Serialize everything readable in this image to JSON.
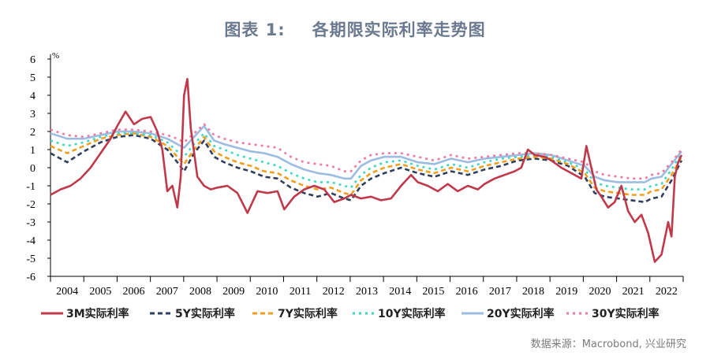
{
  "title": {
    "prefix": "图表 1:",
    "main": "各期限实际利率走势图"
  },
  "source": "数据来源：Macrobond, 兴业研究",
  "chart_data": {
    "type": "line",
    "yunit": "%",
    "ylim": [
      -6,
      6
    ],
    "yticks": [
      6,
      5,
      4,
      3,
      2,
      1,
      0,
      -1,
      -2,
      -3,
      -4,
      -5,
      -6
    ],
    "xlim": [
      2004,
      2022.95
    ],
    "xticks": [
      "2004",
      "2005",
      "2006",
      "2007",
      "2008",
      "2009",
      "2010",
      "2011",
      "2012",
      "2013",
      "2014",
      "2015",
      "2016",
      "2017",
      "2018",
      "2019",
      "2020",
      "2021",
      "2022"
    ],
    "grid": false,
    "legend_position": "bottom",
    "series": [
      {
        "name": "3M实际利率",
        "color": "#c0394b",
        "dash": "solid",
        "x": [
          2004.0,
          2004.3,
          2004.6,
          2004.9,
          2005.2,
          2005.5,
          2005.8,
          2006.0,
          2006.25,
          2006.5,
          2006.75,
          2007.0,
          2007.2,
          2007.35,
          2007.5,
          2007.65,
          2007.8,
          2007.9,
          2008.0,
          2008.1,
          2008.2,
          2008.4,
          2008.6,
          2008.8,
          2009.0,
          2009.3,
          2009.6,
          2009.9,
          2010.2,
          2010.5,
          2010.8,
          2011.0,
          2011.3,
          2011.6,
          2011.9,
          2012.2,
          2012.5,
          2012.8,
          2013.0,
          2013.3,
          2013.6,
          2013.9,
          2014.2,
          2014.5,
          2014.8,
          2015.0,
          2015.3,
          2015.6,
          2015.9,
          2016.2,
          2016.5,
          2016.8,
          2017.0,
          2017.3,
          2017.6,
          2017.9,
          2018.1,
          2018.3,
          2018.5,
          2018.8,
          2019.0,
          2019.3,
          2019.6,
          2019.9,
          2020.05,
          2020.2,
          2020.35,
          2020.5,
          2020.7,
          2020.9,
          2021.1,
          2021.3,
          2021.5,
          2021.7,
          2021.9,
          2022.1,
          2022.3,
          2022.5,
          2022.6,
          2022.7,
          2022.8,
          2022.9
        ],
        "y": [
          -1.5,
          -1.2,
          -1.0,
          -0.6,
          0.0,
          0.8,
          1.6,
          2.3,
          3.1,
          2.4,
          2.7,
          2.8,
          2.0,
          1.0,
          -1.3,
          -1.0,
          -2.2,
          -0.5,
          4.0,
          4.9,
          2.2,
          -0.5,
          -1.0,
          -1.2,
          -1.1,
          -1.0,
          -1.4,
          -2.5,
          -1.3,
          -1.4,
          -1.3,
          -2.3,
          -1.6,
          -1.2,
          -1.0,
          -1.2,
          -1.9,
          -1.7,
          -1.5,
          -1.7,
          -1.6,
          -1.8,
          -1.7,
          -1.0,
          -0.4,
          -0.8,
          -1.0,
          -1.3,
          -0.9,
          -1.3,
          -1.0,
          -1.2,
          -0.9,
          -0.6,
          -0.4,
          -0.2,
          0.0,
          1.0,
          0.7,
          0.6,
          0.4,
          0.0,
          -0.3,
          -0.6,
          1.2,
          0.0,
          -1.2,
          -1.6,
          -2.2,
          -1.9,
          -1.0,
          -2.4,
          -3.0,
          -2.6,
          -3.6,
          -5.2,
          -4.8,
          -3.0,
          -3.8,
          -0.5,
          0.3,
          0.7
        ]
      },
      {
        "name": "5Y实际利率",
        "color": "#2f3f5c",
        "dash": "6,4",
        "x": [
          2004.0,
          2004.5,
          2005.0,
          2005.5,
          2006.0,
          2006.5,
          2007.0,
          2007.5,
          2007.8,
          2008.0,
          2008.3,
          2008.6,
          2008.9,
          2009.2,
          2009.6,
          2010.0,
          2010.4,
          2010.8,
          2011.2,
          2011.6,
          2012.0,
          2012.4,
          2012.8,
          2013.0,
          2013.3,
          2013.6,
          2014.0,
          2014.5,
          2015.0,
          2015.5,
          2016.0,
          2016.5,
          2017.0,
          2017.5,
          2018.0,
          2018.5,
          2019.0,
          2019.5,
          2020.0,
          2020.3,
          2020.6,
          2021.0,
          2021.4,
          2021.8,
          2022.0,
          2022.3,
          2022.6,
          2022.9
        ],
        "y": [
          0.8,
          0.3,
          0.9,
          1.4,
          1.7,
          1.8,
          1.6,
          1.0,
          0.3,
          -0.2,
          0.8,
          1.5,
          0.6,
          0.3,
          0.0,
          -0.2,
          -0.5,
          -0.6,
          -1.1,
          -1.4,
          -1.6,
          -1.4,
          -1.7,
          -1.8,
          -1.0,
          -0.6,
          -0.3,
          0.0,
          -0.3,
          -0.5,
          -0.2,
          -0.4,
          -0.1,
          0.1,
          0.4,
          0.5,
          0.4,
          0.1,
          -0.5,
          -1.4,
          -1.6,
          -1.7,
          -1.8,
          -1.9,
          -1.7,
          -1.6,
          -0.7,
          0.4
        ]
      },
      {
        "name": "7Y实际利率",
        "color": "#f0a020",
        "dash": "6,4",
        "x": [
          2004.0,
          2004.5,
          2005.0,
          2005.5,
          2006.0,
          2006.5,
          2007.0,
          2007.5,
          2007.8,
          2008.0,
          2008.3,
          2008.6,
          2008.9,
          2009.2,
          2009.6,
          2010.0,
          2010.4,
          2010.8,
          2011.2,
          2011.6,
          2012.0,
          2012.4,
          2012.8,
          2013.0,
          2013.3,
          2013.6,
          2014.0,
          2014.5,
          2015.0,
          2015.5,
          2016.0,
          2016.5,
          2017.0,
          2017.5,
          2018.0,
          2018.5,
          2019.0,
          2019.5,
          2020.0,
          2020.3,
          2020.6,
          2021.0,
          2021.4,
          2021.8,
          2022.0,
          2022.3,
          2022.6,
          2022.9
        ],
        "y": [
          1.2,
          0.8,
          1.2,
          1.6,
          1.8,
          1.9,
          1.7,
          1.2,
          0.6,
          0.2,
          1.0,
          1.7,
          0.9,
          0.6,
          0.3,
          0.1,
          -0.2,
          -0.3,
          -0.7,
          -1.0,
          -1.2,
          -1.1,
          -1.4,
          -1.5,
          -0.7,
          -0.3,
          0.0,
          0.2,
          -0.1,
          -0.3,
          0.0,
          -0.2,
          0.1,
          0.3,
          0.5,
          0.6,
          0.5,
          0.2,
          -0.3,
          -1.1,
          -1.3,
          -1.4,
          -1.5,
          -1.5,
          -1.3,
          -1.2,
          -0.4,
          0.6
        ]
      },
      {
        "name": "10Y实际利率",
        "color": "#3fd8c6",
        "dash": "3,5",
        "x": [
          2004.0,
          2004.5,
          2005.0,
          2005.5,
          2006.0,
          2006.5,
          2007.0,
          2007.5,
          2007.8,
          2008.0,
          2008.3,
          2008.6,
          2008.9,
          2009.2,
          2009.6,
          2010.0,
          2010.4,
          2010.8,
          2011.2,
          2011.6,
          2012.0,
          2012.4,
          2012.8,
          2013.0,
          2013.3,
          2013.6,
          2014.0,
          2014.5,
          2015.0,
          2015.5,
          2016.0,
          2016.5,
          2017.0,
          2017.5,
          2018.0,
          2018.5,
          2019.0,
          2019.5,
          2020.0,
          2020.3,
          2020.6,
          2021.0,
          2021.4,
          2021.8,
          2022.0,
          2022.3,
          2022.6,
          2022.9
        ],
        "y": [
          1.5,
          1.2,
          1.4,
          1.7,
          1.9,
          1.9,
          1.8,
          1.4,
          0.9,
          0.6,
          1.3,
          1.9,
          1.2,
          1.0,
          0.7,
          0.5,
          0.3,
          0.1,
          -0.3,
          -0.6,
          -0.8,
          -0.8,
          -1.0,
          -1.1,
          -0.4,
          0.0,
          0.3,
          0.4,
          0.1,
          -0.1,
          0.2,
          0.0,
          0.3,
          0.5,
          0.6,
          0.7,
          0.6,
          0.3,
          -0.1,
          -0.8,
          -1.0,
          -1.1,
          -1.2,
          -1.2,
          -1.0,
          -0.9,
          -0.1,
          0.8
        ]
      },
      {
        "name": "20Y实际利率",
        "color": "#9cbde0",
        "dash": "solid",
        "x": [
          2004.0,
          2004.5,
          2005.0,
          2005.5,
          2006.0,
          2006.5,
          2007.0,
          2007.5,
          2007.8,
          2008.0,
          2008.3,
          2008.6,
          2008.9,
          2009.2,
          2009.6,
          2010.0,
          2010.4,
          2010.8,
          2011.2,
          2011.6,
          2012.0,
          2012.4,
          2012.8,
          2013.0,
          2013.3,
          2013.6,
          2014.0,
          2014.5,
          2015.0,
          2015.5,
          2016.0,
          2016.5,
          2017.0,
          2017.5,
          2018.0,
          2018.5,
          2019.0,
          2019.5,
          2020.0,
          2020.3,
          2020.6,
          2021.0,
          2021.4,
          2021.8,
          2022.0,
          2022.3,
          2022.6,
          2022.9
        ],
        "y": [
          1.9,
          1.6,
          1.6,
          1.8,
          2.0,
          2.0,
          1.9,
          1.6,
          1.3,
          1.1,
          1.7,
          2.3,
          1.5,
          1.3,
          1.1,
          0.9,
          0.8,
          0.6,
          0.2,
          -0.1,
          -0.3,
          -0.4,
          -0.6,
          -0.6,
          0.1,
          0.4,
          0.6,
          0.6,
          0.3,
          0.2,
          0.5,
          0.3,
          0.5,
          0.6,
          0.7,
          0.8,
          0.7,
          0.4,
          0.1,
          -0.5,
          -0.7,
          -0.8,
          -0.8,
          -0.8,
          -0.6,
          -0.5,
          0.2,
          0.9
        ]
      },
      {
        "name": "30Y实际利率",
        "color": "#f07aa0",
        "dash": "3,5",
        "x": [
          2004.0,
          2004.5,
          2005.0,
          2005.5,
          2006.0,
          2006.5,
          2007.0,
          2007.5,
          2007.8,
          2008.0,
          2008.3,
          2008.6,
          2008.9,
          2009.2,
          2009.6,
          2010.0,
          2010.4,
          2010.8,
          2011.2,
          2011.6,
          2012.0,
          2012.4,
          2012.8,
          2013.0,
          2013.3,
          2013.6,
          2014.0,
          2014.5,
          2015.0,
          2015.5,
          2016.0,
          2016.5,
          2017.0,
          2017.5,
          2018.0,
          2018.5,
          2019.0,
          2019.5,
          2020.0,
          2020.3,
          2020.6,
          2021.0,
          2021.4,
          2021.8,
          2022.0,
          2022.3,
          2022.6,
          2022.9
        ],
        "y": [
          2.1,
          1.8,
          1.7,
          1.9,
          2.1,
          2.1,
          2.0,
          1.8,
          1.6,
          1.4,
          1.9,
          2.4,
          1.8,
          1.6,
          1.4,
          1.3,
          1.2,
          1.1,
          0.6,
          0.3,
          0.2,
          0.1,
          -0.2,
          -0.2,
          0.4,
          0.7,
          0.8,
          0.8,
          0.6,
          0.4,
          0.7,
          0.5,
          0.6,
          0.7,
          0.8,
          0.8,
          0.7,
          0.5,
          0.3,
          -0.2,
          -0.4,
          -0.5,
          -0.6,
          -0.6,
          -0.4,
          -0.3,
          0.3,
          1.0
        ]
      }
    ]
  }
}
